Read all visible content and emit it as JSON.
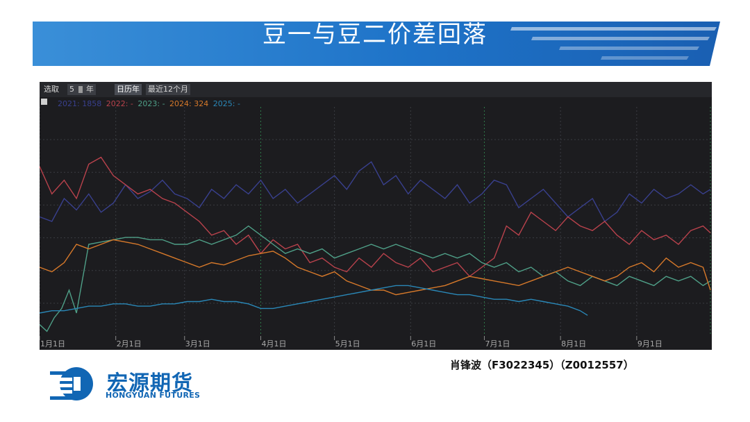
{
  "page": {
    "title": "豆一与豆二价差回落",
    "author": "肖锋波（F3022345）（Z0012557）"
  },
  "logo": {
    "cn": "宏源期货",
    "en": "HONGYUAN FUTURES"
  },
  "toolbar": {
    "select_label": "选取",
    "years_value": "5",
    "years_unit": "年",
    "calendar_year": "日历年",
    "last12": "最近12个月"
  },
  "colors": {
    "2021": "#39408e",
    "2022": "#b9424c",
    "2023": "#4fa088",
    "2024": "#d7792a",
    "2025": "#2a88b8"
  },
  "chart_data": {
    "type": "line",
    "x_ticks": [
      "1月1日",
      "2月1日",
      "3月1日",
      "4月1日",
      "5月1日",
      "6月1日",
      "7月1日",
      "8月1日",
      "9月1日"
    ],
    "legend": [
      {
        "text": "2021: 1858",
        "color": "#39408e"
      },
      {
        "text": "2022: -",
        "color": "#b9424c"
      },
      {
        "text": "2023: -",
        "color": "#4fa088"
      },
      {
        "text": "2024: 324",
        "color": "#d7792a"
      },
      {
        "text": "2025: -",
        "color": "#2a88b8"
      }
    ],
    "ylim": [
      0,
      100
    ],
    "grid": true,
    "series": [
      {
        "name": "2021",
        "color": "#39408e",
        "x": [
          0,
          5,
          10,
          15,
          20,
          25,
          30,
          35,
          40,
          45,
          50,
          55,
          60,
          65,
          70,
          75,
          80,
          85,
          90,
          95,
          100,
          105,
          110,
          115,
          120,
          125,
          130,
          135,
          140,
          145,
          150,
          155,
          160,
          165,
          170,
          175,
          180,
          185,
          190,
          195,
          200,
          205,
          210,
          215,
          220,
          225,
          230,
          235,
          240,
          245,
          250,
          255,
          260,
          265,
          270,
          273
        ],
        "y": [
          52,
          50,
          60,
          55,
          62,
          54,
          58,
          66,
          60,
          63,
          68,
          62,
          60,
          56,
          64,
          60,
          66,
          62,
          68,
          60,
          64,
          58,
          62,
          66,
          70,
          64,
          72,
          76,
          66,
          70,
          62,
          68,
          64,
          60,
          66,
          58,
          62,
          68,
          66,
          56,
          60,
          64,
          58,
          52,
          56,
          60,
          50,
          54,
          62,
          58,
          64,
          60,
          62,
          66,
          62,
          64
        ]
      },
      {
        "name": "2022",
        "color": "#b9424c",
        "x": [
          0,
          5,
          10,
          15,
          20,
          25,
          30,
          35,
          40,
          45,
          50,
          55,
          60,
          65,
          70,
          75,
          80,
          85,
          90,
          95,
          100,
          105,
          110,
          115,
          120,
          125,
          130,
          135,
          140,
          145,
          150,
          155,
          160,
          165,
          170,
          175,
          180,
          185,
          190,
          195,
          200,
          205,
          210,
          215,
          220,
          225,
          230,
          235,
          240,
          245,
          250,
          255,
          260,
          265,
          270,
          273
        ],
        "y": [
          74,
          62,
          68,
          60,
          75,
          78,
          70,
          66,
          62,
          64,
          60,
          58,
          54,
          50,
          44,
          46,
          40,
          44,
          36,
          42,
          38,
          40,
          32,
          34,
          30,
          28,
          34,
          30,
          36,
          32,
          30,
          34,
          28,
          30,
          32,
          26,
          30,
          34,
          48,
          44,
          54,
          50,
          46,
          52,
          48,
          46,
          50,
          44,
          40,
          46,
          42,
          44,
          40,
          46,
          48,
          45
        ]
      },
      {
        "name": "2023",
        "color": "#4fa088",
        "x": [
          0,
          3,
          6,
          9,
          12,
          15,
          20,
          25,
          30,
          35,
          40,
          45,
          50,
          55,
          60,
          65,
          70,
          75,
          80,
          85,
          90,
          95,
          100,
          105,
          110,
          115,
          120,
          125,
          130,
          135,
          140,
          145,
          150,
          155,
          160,
          165,
          170,
          175,
          180,
          185,
          190,
          195,
          200,
          205,
          210,
          215,
          220,
          225,
          230,
          235,
          240,
          245,
          250,
          255,
          260,
          265,
          270,
          273
        ],
        "y": [
          5,
          2,
          8,
          12,
          20,
          10,
          40,
          41,
          42,
          43,
          43,
          42,
          42,
          40,
          40,
          42,
          40,
          42,
          44,
          48,
          44,
          40,
          36,
          38,
          36,
          38,
          34,
          36,
          38,
          40,
          38,
          40,
          38,
          36,
          34,
          36,
          34,
          36,
          32,
          30,
          32,
          28,
          30,
          26,
          28,
          24,
          22,
          26,
          24,
          22,
          26,
          24,
          22,
          26,
          24,
          26,
          22,
          24
        ]
      },
      {
        "name": "2024",
        "color": "#d7792a",
        "x": [
          0,
          5,
          10,
          15,
          20,
          25,
          30,
          35,
          40,
          45,
          50,
          55,
          60,
          65,
          70,
          75,
          80,
          85,
          90,
          95,
          100,
          105,
          110,
          115,
          120,
          125,
          130,
          135,
          140,
          145,
          150,
          155,
          160,
          165,
          170,
          175,
          180,
          185,
          190,
          195,
          200,
          205,
          210,
          215,
          220,
          225,
          230,
          235,
          240,
          245,
          250,
          255,
          260,
          265,
          270,
          273
        ],
        "y": [
          30,
          28,
          32,
          40,
          38,
          40,
          42,
          41,
          40,
          38,
          36,
          34,
          32,
          30,
          32,
          31,
          33,
          35,
          36,
          37,
          34,
          30,
          28,
          26,
          28,
          24,
          22,
          20,
          20,
          18,
          19,
          20,
          21,
          22,
          24,
          26,
          25,
          24,
          23,
          22,
          24,
          26,
          28,
          30,
          28,
          26,
          24,
          26,
          30,
          32,
          28,
          34,
          30,
          32,
          30,
          20
        ]
      },
      {
        "name": "2025",
        "color": "#2a88b8",
        "x": [
          0,
          5,
          10,
          15,
          20,
          25,
          30,
          35,
          40,
          45,
          50,
          55,
          60,
          65,
          70,
          75,
          80,
          85,
          90,
          95,
          100,
          105,
          110,
          115,
          120,
          125,
          130,
          135,
          140,
          145,
          150,
          155,
          160,
          165,
          170,
          175,
          180,
          185,
          190,
          195,
          200,
          205,
          210,
          215,
          220,
          223
        ],
        "y": [
          10,
          11,
          11,
          12,
          13,
          13,
          14,
          14,
          13,
          13,
          14,
          14,
          15,
          15,
          16,
          15,
          15,
          14,
          12,
          12,
          13,
          14,
          15,
          16,
          17,
          18,
          19,
          20,
          21,
          22,
          22,
          21,
          20,
          19,
          18,
          18,
          17,
          16,
          16,
          15,
          16,
          15,
          14,
          13,
          11,
          9
        ]
      }
    ]
  }
}
